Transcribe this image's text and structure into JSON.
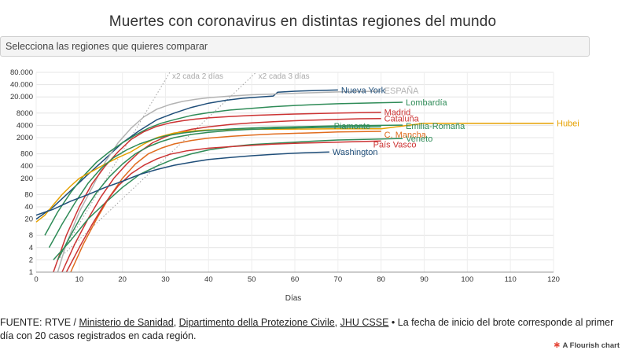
{
  "title": "Muertes con coronavirus en distintas regiones del mundo",
  "selector": {
    "placeholder": "Selecciona las regiones que quieres comparar"
  },
  "footer": {
    "prefix": "FUENTE: RTVE / ",
    "source1": "Ministerio de Sanidad",
    "sep1": ", ",
    "source2": "Dipartimento della Protezione Civile",
    "sep2": ", ",
    "source3": "JHU CSSE",
    "note": " • La fecha de inicio del brote corresponde al primer día con 20 casos registrados en cada región."
  },
  "brand": {
    "label": "A Flourish chart"
  },
  "chart_data": {
    "type": "line",
    "title": "Muertes con coronavirus en distintas regiones del mundo",
    "xlabel": "Días",
    "ylabel": "",
    "xlim": [
      0,
      120
    ],
    "ylim": [
      1,
      80000
    ],
    "y_scale": "log",
    "x_ticks": [
      0,
      10,
      20,
      30,
      40,
      50,
      60,
      70,
      80,
      90,
      100,
      110,
      120
    ],
    "y_ticks": [
      1,
      2,
      4,
      8,
      20,
      40,
      80,
      200,
      400,
      800,
      2000,
      4000,
      8000,
      20000,
      40000,
      80000
    ],
    "y_tick_labels": [
      "1",
      "2",
      "4",
      "8",
      "20",
      "40",
      "80",
      "200",
      "400",
      "800",
      "2000",
      "4000",
      "8000",
      "20.000",
      "40.000",
      "80.000"
    ],
    "grid": true,
    "reference_lines": [
      {
        "name": "x2 cada 2 días",
        "doubling_days": 2,
        "start": [
          5,
          2
        ],
        "end": [
          31,
          80000
        ]
      },
      {
        "name": "x2 cada 3 días",
        "doubling_days": 3,
        "start": [
          5,
          2
        ],
        "end": [
          51,
          80000
        ]
      }
    ],
    "series": [
      {
        "name": "Nueva York",
        "color": "#1f4e79",
        "x": [
          0,
          4,
          8,
          12,
          16,
          20,
          24,
          28,
          32,
          36,
          40,
          44,
          48,
          52,
          55,
          56,
          60,
          64,
          70
        ],
        "y": [
          20,
          40,
          100,
          250,
          600,
          1500,
          3000,
          5500,
          8000,
          11000,
          14000,
          16500,
          18500,
          20000,
          21000,
          26000,
          27500,
          28500,
          29500
        ]
      },
      {
        "name": "ESPAÑA",
        "color": "#b3b3b3",
        "x": [
          5,
          7,
          10,
          13,
          16,
          19,
          22,
          25,
          28,
          31,
          34,
          37,
          40,
          45,
          50,
          55,
          60,
          65,
          70,
          75,
          80
        ],
        "y": [
          1,
          5,
          30,
          120,
          500,
          1500,
          3400,
          6500,
          10000,
          13000,
          15500,
          17500,
          19000,
          21000,
          22500,
          23500,
          24500,
          25500,
          26500,
          27000,
          27500
        ]
      },
      {
        "name": "Lombardía",
        "color": "#2e8b57",
        "x": [
          2,
          5,
          8,
          11,
          14,
          17,
          20,
          23,
          26,
          29,
          32,
          36,
          40,
          45,
          50,
          55,
          60,
          65,
          70,
          75,
          80,
          85
        ],
        "y": [
          8,
          30,
          90,
          230,
          500,
          900,
          1500,
          2300,
          3400,
          4500,
          5500,
          7000,
          8200,
          9500,
          10500,
          11500,
          12300,
          13000,
          13600,
          14000,
          14400,
          14800
        ]
      },
      {
        "name": "Madrid",
        "color": "#cc3333",
        "x": [
          4,
          7,
          10,
          13,
          16,
          19,
          22,
          25,
          28,
          31,
          34,
          37,
          40,
          45,
          50,
          55,
          60,
          65,
          70,
          75,
          80
        ],
        "y": [
          1,
          8,
          40,
          150,
          400,
          900,
          1800,
          2800,
          3800,
          4600,
          5200,
          5700,
          6100,
          6600,
          7000,
          7300,
          7600,
          7800,
          8000,
          8200,
          8400
        ]
      },
      {
        "name": "Cataluña",
        "color": "#cc3333",
        "x": [
          6,
          9,
          12,
          15,
          18,
          21,
          24,
          27,
          30,
          33,
          36,
          40,
          45,
          50,
          55,
          60,
          65,
          70,
          75,
          80
        ],
        "y": [
          1,
          5,
          20,
          70,
          200,
          450,
          900,
          1500,
          2100,
          2700,
          3200,
          3700,
          4200,
          4600,
          4900,
          5200,
          5400,
          5600,
          5800,
          5900
        ]
      },
      {
        "name": "Hubei",
        "color": "#e6a100",
        "x": [
          0,
          2,
          4,
          6,
          8,
          10,
          13,
          16,
          19,
          22,
          25,
          28,
          32,
          36,
          40,
          50,
          60,
          70,
          80,
          90,
          100,
          110,
          120
        ],
        "y": [
          17,
          25,
          45,
          80,
          130,
          200,
          300,
          450,
          650,
          900,
          1400,
          2000,
          2600,
          2900,
          3100,
          3200,
          3250,
          3290,
          3300,
          4500,
          4500,
          4500,
          4500
        ]
      },
      {
        "name": "C. Mancha",
        "color": "#e06c1e",
        "x": [
          8,
          11,
          14,
          17,
          20,
          23,
          26,
          29,
          32,
          36,
          40,
          45,
          50,
          55,
          60,
          65,
          70,
          75,
          80
        ],
        "y": [
          1,
          5,
          20,
          70,
          200,
          450,
          800,
          1100,
          1400,
          1700,
          1950,
          2150,
          2300,
          2450,
          2550,
          2650,
          2750,
          2800,
          2850
        ]
      },
      {
        "name": "Piamonte",
        "color": "#2e8b57",
        "x": [
          5,
          8,
          11,
          14,
          17,
          20,
          23,
          26,
          29,
          32,
          36,
          40,
          45,
          50,
          55,
          60,
          65,
          70,
          75,
          80
        ],
        "y": [
          2,
          8,
          30,
          90,
          220,
          450,
          800,
          1200,
          1600,
          2000,
          2400,
          2700,
          3000,
          3200,
          3350,
          3450,
          3550,
          3600,
          3650,
          3700
        ]
      },
      {
        "name": "Emilia-Romaña",
        "color": "#2e8b57",
        "x": [
          3,
          6,
          9,
          12,
          15,
          18,
          21,
          24,
          27,
          30,
          34,
          38,
          42,
          46,
          50,
          55,
          60,
          65,
          70,
          75,
          80,
          85
        ],
        "y": [
          4,
          15,
          50,
          150,
          350,
          650,
          1000,
          1400,
          1800,
          2200,
          2600,
          2900,
          3100,
          3300,
          3450,
          3600,
          3700,
          3800,
          3900,
          3950,
          4000,
          4050
        ]
      },
      {
        "name": "Veneto",
        "color": "#2e8b57",
        "x": [
          4,
          8,
          12,
          16,
          20,
          24,
          28,
          32,
          36,
          40,
          45,
          50,
          55,
          60,
          65,
          70,
          75,
          80,
          85
        ],
        "y": [
          2,
          6,
          20,
          50,
          120,
          250,
          400,
          600,
          800,
          1000,
          1200,
          1350,
          1450,
          1550,
          1650,
          1750,
          1800,
          1850,
          1900
        ]
      },
      {
        "name": "País Vasco",
        "color": "#cc3333",
        "x": [
          7,
          10,
          13,
          16,
          19,
          22,
          25,
          28,
          31,
          35,
          40,
          45,
          50,
          55,
          60,
          65,
          70,
          75,
          80
        ],
        "y": [
          1,
          4,
          15,
          50,
          130,
          260,
          420,
          600,
          780,
          950,
          1100,
          1200,
          1300,
          1380,
          1450,
          1500,
          1550,
          1600,
          1650
        ]
      },
      {
        "name": "Washington",
        "color": "#1f4e79",
        "x": [
          0,
          4,
          8,
          12,
          16,
          20,
          24,
          28,
          32,
          36,
          40,
          45,
          50,
          55,
          60,
          65,
          68
        ],
        "y": [
          25,
          35,
          55,
          80,
          120,
          170,
          250,
          330,
          420,
          500,
          580,
          650,
          720,
          780,
          830,
          870,
          890
        ]
      }
    ]
  }
}
